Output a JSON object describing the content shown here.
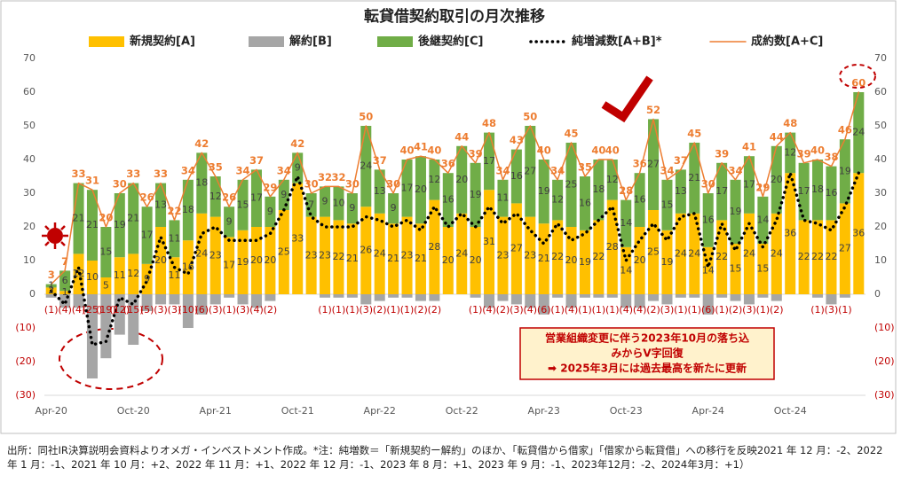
{
  "chart_data": {
    "type": "bar",
    "stacked": true,
    "title": "転貸借契約取引の月次推移",
    "categories": [
      "Apr-20",
      null,
      null,
      null,
      null,
      null,
      "Oct-20",
      null,
      null,
      null,
      null,
      null,
      "Apr-21",
      null,
      null,
      null,
      null,
      null,
      "Oct-21",
      null,
      null,
      null,
      null,
      null,
      "Apr-22",
      null,
      null,
      null,
      null,
      null,
      "Oct-22",
      null,
      null,
      null,
      null,
      null,
      "Apr-23",
      null,
      null,
      null,
      null,
      null,
      "Oct-23",
      null,
      null,
      null,
      null,
      null,
      "Apr-24",
      null,
      null,
      null,
      null,
      null,
      "Oct-24",
      null,
      null,
      null,
      null,
      null
    ],
    "series": [
      {
        "name": "新規契約[A]",
        "type": "bar",
        "color": "#ffc000",
        "values": [
          2,
          1,
          12,
          10,
          5,
          11,
          12,
          9,
          20,
          11,
          16,
          24,
          23,
          17,
          19,
          20,
          20,
          25,
          33,
          23,
          23,
          22,
          21,
          26,
          24,
          21,
          23,
          21,
          28,
          20,
          24,
          20,
          31,
          23,
          27,
          23,
          21,
          22,
          20,
          19,
          22,
          28,
          14,
          20,
          25,
          19,
          24,
          24,
          14,
          22,
          15,
          24,
          15,
          24,
          36,
          22,
          22,
          22,
          27,
          36
        ]
      },
      {
        "name": "解約[B]",
        "type": "bar",
        "color": "#a6a6a6",
        "values": [
          -1,
          -4,
          -4,
          -25,
          -19,
          -12,
          -15,
          -5,
          -3,
          -3,
          -10,
          -6,
          -3,
          -1,
          -3,
          -4,
          -2,
          null,
          null,
          null,
          -1,
          -1,
          -1,
          -3,
          -2,
          -1,
          -1,
          -2,
          -2,
          null,
          null,
          -1,
          -4,
          -2,
          -3,
          -4,
          -6,
          -1,
          -4,
          -1,
          -1,
          -1,
          -4,
          -4,
          -2,
          -3,
          -1,
          -1,
          -6,
          -1,
          -2,
          -3,
          -1,
          -2,
          null,
          null,
          -1,
          -3,
          -1,
          null
        ],
        "value_labels": [
          "(1)",
          "(4)",
          "(4)",
          "(25)",
          "(19)",
          "(12)",
          "(15)",
          "(5)",
          "(3)",
          "(3)",
          "(10)",
          "(6)",
          "(3)",
          "(1)",
          "(3)",
          "(4)",
          "(2)",
          null,
          null,
          null,
          "(1)",
          "(1)",
          "(1)",
          "(3)",
          "(2)",
          "(1)",
          "(1)",
          "(2)",
          "(2)",
          null,
          null,
          "(1)",
          "(4)",
          "(2)",
          "(3)",
          "(4)",
          "(6)",
          "(1)",
          "(4)",
          "(1)",
          "(1)",
          "(1)",
          "(4)",
          "(4)",
          "(2)",
          "(3)",
          "(1)",
          "(1)",
          "(6)",
          "(1)",
          "(2)",
          "(3)",
          "(1)",
          "(2)",
          null,
          null,
          "(1)",
          "(3)",
          "(1)",
          null
        ]
      },
      {
        "name": "後継契約[C]",
        "type": "bar",
        "color": "#70ad47",
        "values": [
          1,
          6,
          21,
          21,
          15,
          19,
          21,
          17,
          13,
          11,
          18,
          18,
          12,
          9,
          15,
          17,
          9,
          9,
          9,
          7,
          9,
          10,
          9,
          24,
          13,
          9,
          17,
          20,
          12,
          16,
          20,
          19,
          17,
          11,
          16,
          27,
          19,
          12,
          25,
          16,
          18,
          12,
          14,
          16,
          27,
          15,
          13,
          21,
          16,
          17,
          19,
          17,
          14,
          20,
          12,
          17,
          18,
          16,
          19,
          24
        ]
      },
      {
        "name": "純増減数[A+B]*",
        "type": "line",
        "style": "dotted",
        "color": "#000000",
        "values": [
          1,
          -3,
          8,
          -15,
          -14,
          -1,
          -3,
          4,
          17,
          8,
          6,
          18,
          20,
          16,
          16,
          16,
          18,
          25,
          35,
          23,
          20,
          20,
          20,
          23,
          22,
          20,
          22,
          19,
          26,
          20,
          24,
          20,
          26,
          21,
          24,
          19,
          15,
          21,
          16,
          18,
          22,
          26,
          10,
          16,
          21,
          16,
          23,
          24,
          8,
          21,
          13,
          21,
          14,
          22,
          36,
          22,
          21,
          19,
          26,
          36
        ]
      },
      {
        "name": "成約数[A+C]",
        "type": "line",
        "color": "#ed7d31",
        "values": [
          3,
          7,
          33,
          31,
          20,
          30,
          33,
          26,
          33,
          22,
          34,
          42,
          35,
          26,
          34,
          37,
          29,
          34,
          42,
          30,
          32,
          32,
          30,
          50,
          37,
          30,
          40,
          41,
          40,
          36,
          44,
          39,
          48,
          34,
          43,
          50,
          40,
          34,
          45,
          35,
          40,
          40,
          28,
          36,
          52,
          34,
          37,
          45,
          30,
          39,
          34,
          41,
          29,
          44,
          48,
          39,
          40,
          38,
          46,
          60
        ]
      }
    ],
    "ylim": [
      -30,
      70
    ],
    "yticks": [
      {
        "value": -30,
        "label": "(30)"
      },
      {
        "value": -20,
        "label": "(20)"
      },
      {
        "value": -10,
        "label": "(10)"
      },
      0,
      10,
      20,
      30,
      40,
      50,
      60,
      70
    ],
    "y2lim": [
      -30,
      70
    ],
    "y2ticks": [
      {
        "value": -30,
        "label": "(30)"
      },
      {
        "value": -20,
        "label": "(20)"
      },
      {
        "value": -10,
        "label": "(10)"
      },
      0,
      10,
      20,
      30,
      40,
      50,
      60,
      70
    ],
    "grid": false,
    "legend": "top",
    "annotation": [
      "営業組織変更に伴う2023年10月の落ち込",
      "みからV字回復",
      "➡ 2025年3月には過去最高を新たに更新"
    ],
    "note": "出所：同社IR決算説明会資料よりオメガ・インベストメント作成。*注：純増数＝「新規契約ー解約」のほか、「転貸借から借家」「借家から転貸借」への移行を反映2021 年 12 月：-2、2022 年 1 月：-1、2021 年 10 月：+2、2022 年 11 月：+1、2022 年 12 月：-1、2023 年 8 月：+1、2023 年 9 月：-1、2023年12月：-2、2024年3月：+1）"
  }
}
